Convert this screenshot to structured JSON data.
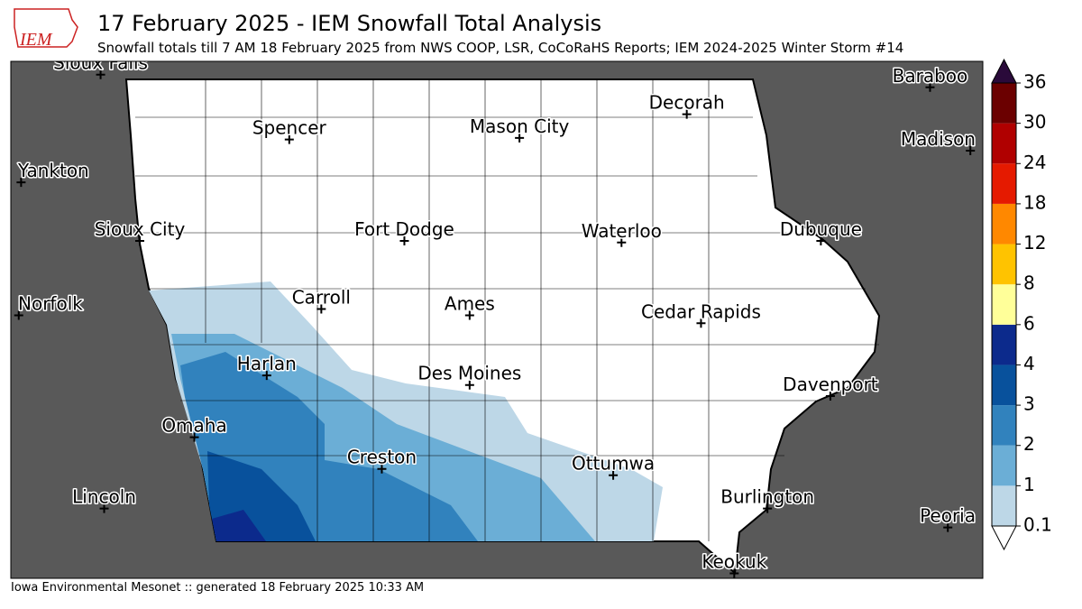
{
  "header": {
    "title": "17 February 2025 - IEM Snowfall Total Analysis",
    "subtitle": "Snowfall totals till 7 AM 18 February 2025 from NWS COOP, LSR, CoCoRaHS Reports; IEM 2024-2025 Winter Storm #14",
    "logo": "IEM"
  },
  "footer": "Iowa Environmental Mesonet :: generated 18 February 2025 10:33 AM",
  "colorbar": {
    "levels": [
      {
        "value": 0.1,
        "label": "0.1"
      },
      1,
      2,
      3,
      4,
      6,
      8,
      12,
      18,
      24,
      30,
      36
    ],
    "colors": [
      "#bdd7e7",
      "#6baed6",
      "#3182bd",
      "#08519c",
      "#0c2a8c",
      "#ffff99",
      "#ffc300",
      "#ff8800",
      "#e51a00",
      "#b00000",
      "#6b0000"
    ],
    "over_color": "#2a0a3a",
    "under_color": "#ffffff"
  },
  "cities": [
    {
      "name": "Sioux Falls",
      "lon": -96.73,
      "lat": 43.55
    },
    {
      "name": "Baraboo",
      "lon": -89.74,
      "lat": 43.47
    },
    {
      "name": "Spencer",
      "lon": -95.14,
      "lat": 43.14
    },
    {
      "name": "Mason City",
      "lon": -93.2,
      "lat": 43.15
    },
    {
      "name": "Decorah",
      "lon": -91.79,
      "lat": 43.3
    },
    {
      "name": "Madison",
      "lon": -89.4,
      "lat": 43.07
    },
    {
      "name": "Yankton",
      "lon": -97.4,
      "lat": 42.87
    },
    {
      "name": "Sioux City",
      "lon": -96.4,
      "lat": 42.5
    },
    {
      "name": "Fort Dodge",
      "lon": -94.17,
      "lat": 42.5
    },
    {
      "name": "Waterloo",
      "lon": -92.34,
      "lat": 42.49
    },
    {
      "name": "Dubuque",
      "lon": -90.66,
      "lat": 42.5
    },
    {
      "name": "Norfolk",
      "lon": -97.42,
      "lat": 42.03
    },
    {
      "name": "Carroll",
      "lon": -94.87,
      "lat": 42.07
    },
    {
      "name": "Ames",
      "lon": -93.62,
      "lat": 42.03
    },
    {
      "name": "Cedar Rapids",
      "lon": -91.67,
      "lat": 41.98
    },
    {
      "name": "Harlan",
      "lon": -95.33,
      "lat": 41.65
    },
    {
      "name": "Des Moines",
      "lon": -93.62,
      "lat": 41.59
    },
    {
      "name": "Davenport",
      "lon": -90.58,
      "lat": 41.52
    },
    {
      "name": "Omaha",
      "lon": -95.94,
      "lat": 41.26
    },
    {
      "name": "Creston",
      "lon": -94.36,
      "lat": 41.06
    },
    {
      "name": "Ottumwa",
      "lon": -92.41,
      "lat": 41.02
    },
    {
      "name": "Lincoln",
      "lon": -96.7,
      "lat": 40.81
    },
    {
      "name": "Burlington",
      "lon": -91.11,
      "lat": 40.81
    },
    {
      "name": "Peoria",
      "lon": -89.59,
      "lat": 40.69
    },
    {
      "name": "Keokuk",
      "lon": -91.39,
      "lat": 40.4
    }
  ]
}
